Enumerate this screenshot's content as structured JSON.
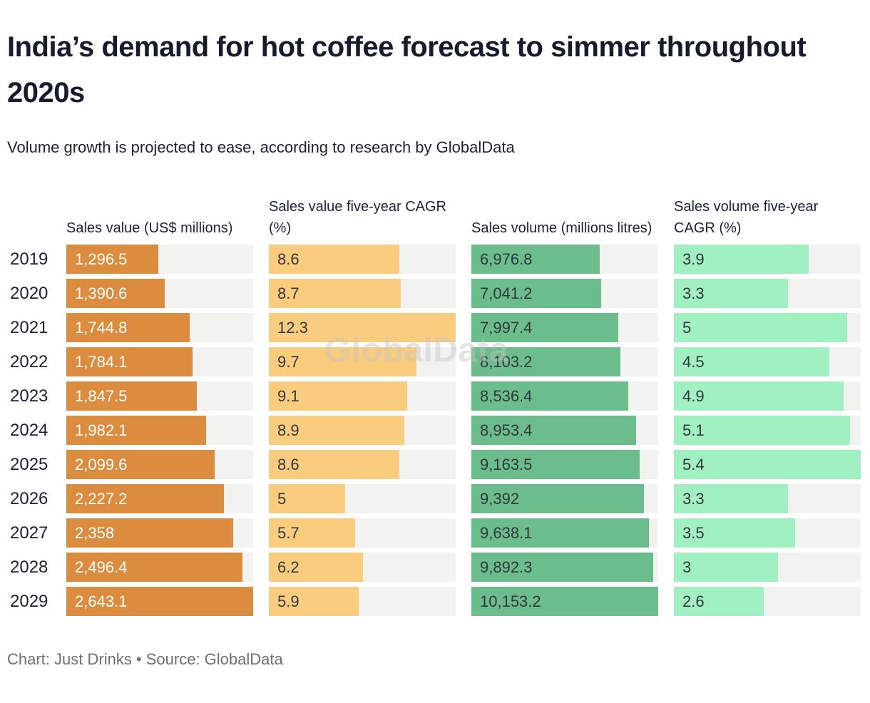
{
  "page": {
    "title": "India’s demand for hot coffee forecast to simmer throughout 2020s",
    "subtitle": "Volume growth is projected to ease, according to research by GlobalData",
    "footer": "Chart: Just Drinks • Source: GlobalData",
    "watermark": "GlobalData"
  },
  "colors": {
    "sales_value_bar": "#dc8c3f",
    "value_cagr_bar": "#facc7e",
    "sales_volume_bar": "#6bbd8b",
    "volume_cagr_bar": "#a0f0c1",
    "bar_track": "#f2f2f0",
    "text_dark": "#1a2333",
    "label_on_dark_bar": "#ffffff",
    "label_on_light_bar": "#33383f",
    "footer_text": "#6f6f6f"
  },
  "chart_data": {
    "type": "bar",
    "orientation": "horizontal",
    "title": "India’s demand for hot coffee forecast to simmer throughout 2020s",
    "subtitle": "Volume growth is projected to ease, according to research by GlobalData",
    "footer": "Chart: Just Drinks • Source: GlobalData",
    "legend": "none",
    "grid": "off",
    "scaling": "each column scaled independently; column max fills full track width",
    "categories": [
      "2019",
      "2020",
      "2021",
      "2022",
      "2023",
      "2024",
      "2025",
      "2026",
      "2027",
      "2028",
      "2029"
    ],
    "series": [
      {
        "name": "Sales value (US$ millions)",
        "values": [
          1296.5,
          1390.6,
          1744.8,
          1784.1,
          1847.5,
          1982.1,
          2099.6,
          2227.2,
          2358,
          2496.4,
          2643.1
        ],
        "labels": [
          "1,296.5",
          "1,390.6",
          "1,744.8",
          "1,784.1",
          "1,847.5",
          "1,982.1",
          "2,099.6",
          "2,227.2",
          "2,358",
          "2,496.4",
          "2,643.1"
        ],
        "color": "#dc8c3f",
        "label_color": "#ffffff"
      },
      {
        "name": "Sales value five-year CAGR (%)",
        "values": [
          8.6,
          8.7,
          12.3,
          9.7,
          9.1,
          8.9,
          8.6,
          5,
          5.7,
          6.2,
          5.9
        ],
        "labels": [
          "8.6",
          "8.7",
          "12.3",
          "9.7",
          "9.1",
          "8.9",
          "8.6",
          "5",
          "5.7",
          "6.2",
          "5.9"
        ],
        "color": "#facc7e",
        "label_color": "#33383f"
      },
      {
        "name": "Sales volume (millions litres)",
        "values": [
          6976.8,
          7041.2,
          7997.4,
          8103.2,
          8536.4,
          8953.4,
          9163.5,
          9392,
          9638.1,
          9892.3,
          10153.2
        ],
        "labels": [
          "6,976.8",
          "7,041.2",
          "7,997.4",
          "8,103.2",
          "8,536.4",
          "8,953.4",
          "9,163.5",
          "9,392",
          "9,638.1",
          "9,892.3",
          "10,153.2"
        ],
        "color": "#6bbd8b",
        "label_color": "#33383f"
      },
      {
        "name": "Sales volume five-year CAGR (%)",
        "values": [
          3.9,
          3.3,
          5,
          4.5,
          4.9,
          5.1,
          5.4,
          3.3,
          3.5,
          3,
          2.6
        ],
        "labels": [
          "3.9",
          "3.3",
          "5",
          "4.5",
          "4.9",
          "5.1",
          "5.4",
          "3.3",
          "3.5",
          "3",
          "2.6"
        ],
        "color": "#a0f0c1",
        "label_color": "#33383f"
      }
    ]
  }
}
